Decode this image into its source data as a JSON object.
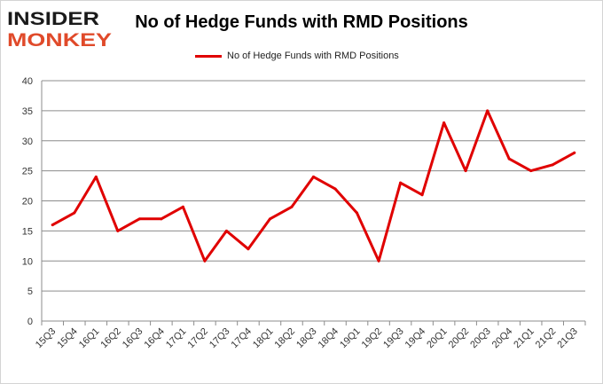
{
  "logo": {
    "line1": "INSIDER",
    "line2": "MONKEY"
  },
  "chart_data": {
    "type": "line",
    "title": "No of Hedge Funds with RMD Positions",
    "xlabel": "",
    "ylabel": "",
    "ylim": [
      0,
      40
    ],
    "yticks": [
      0,
      5,
      10,
      15,
      20,
      25,
      30,
      35,
      40
    ],
    "grid": true,
    "legend_position": "top",
    "categories": [
      "15Q3",
      "15Q4",
      "16Q1",
      "16Q2",
      "16Q3",
      "16Q4",
      "17Q1",
      "17Q2",
      "17Q3",
      "17Q4",
      "18Q1",
      "18Q2",
      "18Q3",
      "18Q4",
      "19Q1",
      "19Q2",
      "19Q3",
      "19Q4",
      "20Q1",
      "20Q2",
      "20Q3",
      "20Q4",
      "21Q1",
      "21Q2",
      "21Q3"
    ],
    "series": [
      {
        "name": "No of Hedge Funds with RMD Positions",
        "color": "#e00000",
        "values": [
          16,
          18,
          24,
          15,
          17,
          17,
          19,
          10,
          15,
          12,
          17,
          19,
          24,
          22,
          18,
          10,
          23,
          21,
          33,
          25,
          35,
          27,
          25,
          26,
          28
        ]
      }
    ]
  }
}
